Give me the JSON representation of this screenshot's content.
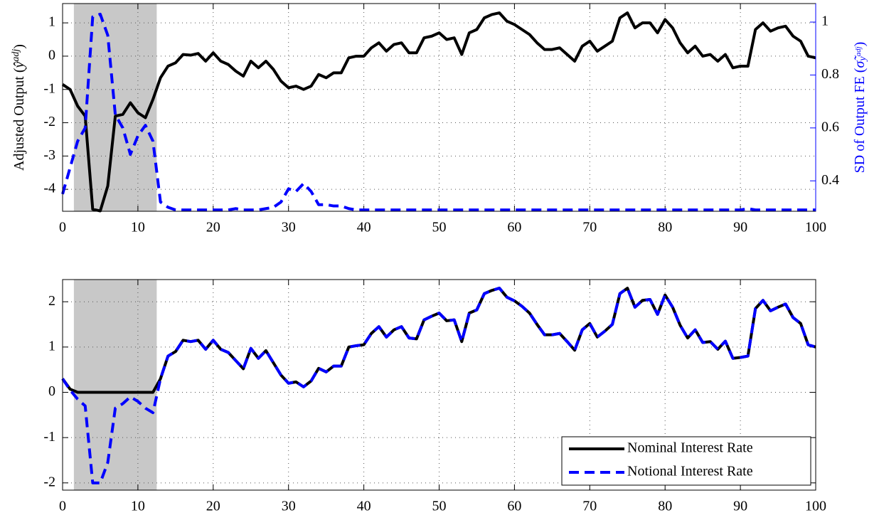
{
  "chart_data": [
    {
      "type": "line",
      "ylabel": [
        "Adjusted Output (",
        "ŷ",
        "adj",
        ")"
      ],
      "y2label": [
        "SD of Output FE (",
        "σ̃",
        "y",
        "adj",
        ")"
      ],
      "y2color": "#0000ff",
      "shaded_xrange": [
        1.5,
        12.5
      ],
      "shade_color": "#c8c8c8",
      "grid": true,
      "xlim": [
        0,
        100
      ],
      "xticks": [
        0,
        10,
        20,
        30,
        40,
        50,
        60,
        70,
        80,
        90,
        100
      ],
      "ylim": [
        -4.66,
        1.58
      ],
      "yticks": [
        -4,
        -3,
        -2,
        -1,
        0,
        1
      ],
      "y2lim": [
        0.285,
        1.07
      ],
      "y2ticks": [
        0.4,
        0.6,
        0.8,
        1
      ],
      "x": [
        0,
        1,
        2,
        3,
        4,
        5,
        6,
        7,
        8,
        9,
        10,
        11,
        12,
        13,
        14,
        15,
        16,
        17,
        18,
        19,
        20,
        21,
        22,
        23,
        24,
        25,
        26,
        27,
        28,
        29,
        30,
        31,
        32,
        33,
        34,
        35,
        36,
        37,
        38,
        39,
        40,
        41,
        42,
        43,
        44,
        45,
        46,
        47,
        48,
        49,
        50,
        51,
        52,
        53,
        54,
        55,
        56,
        57,
        58,
        59,
        60,
        61,
        62,
        63,
        64,
        65,
        66,
        67,
        68,
        69,
        70,
        71,
        72,
        73,
        74,
        75,
        76,
        77,
        78,
        79,
        80,
        81,
        82,
        83,
        84,
        85,
        86,
        87,
        88,
        89,
        90,
        91,
        92,
        93,
        94,
        95,
        96,
        97,
        98,
        99,
        100
      ],
      "series": [
        {
          "color": "#000000",
          "linestyle": "solid",
          "values": [
            -0.85,
            -1.0,
            -1.5,
            -1.8,
            -4.6,
            -4.65,
            -3.9,
            -1.8,
            -1.75,
            -1.4,
            -1.7,
            -1.85,
            -1.3,
            -0.65,
            -0.3,
            -0.2,
            0.05,
            0.03,
            0.08,
            -0.15,
            0.1,
            -0.15,
            -0.25,
            -0.45,
            -0.6,
            -0.15,
            -0.35,
            -0.15,
            -0.4,
            -0.75,
            -0.95,
            -0.9,
            -1.0,
            -0.9,
            -0.55,
            -0.65,
            -0.5,
            -0.5,
            -0.05,
            0,
            0,
            0.25,
            0.4,
            0.15,
            0.35,
            0.4,
            0.1,
            0.1,
            0.55,
            0.6,
            0.7,
            0.5,
            0.55,
            0.05,
            0.7,
            0.8,
            1.15,
            1.25,
            1.3,
            1.05,
            0.95,
            0.8,
            0.65,
            0.4,
            0.2,
            0.2,
            0.25,
            0.05,
            -0.15,
            0.3,
            0.45,
            0.15,
            0.3,
            0.45,
            1.15,
            1.3,
            0.85,
            1.0,
            1.0,
            0.7,
            1.1,
            0.85,
            0.4,
            0.1,
            0.3,
            0.0,
            0.05,
            -0.15,
            0.05,
            -0.35,
            -0.3,
            -0.3,
            0.8,
            1.0,
            0.75,
            0.85,
            0.9,
            0.6,
            0.45,
            0.0,
            -0.05
          ]
        },
        {
          "color": "#0000ff",
          "linestyle": "dashed",
          "axis": "y2",
          "values": [
            0.35,
            0.45,
            0.55,
            0.6,
            1.02,
            1.03,
            0.95,
            0.65,
            0.6,
            0.5,
            0.57,
            0.61,
            0.55,
            0.32,
            0.3,
            0.29,
            0.29,
            0.29,
            0.29,
            0.29,
            0.29,
            0.29,
            0.29,
            0.295,
            0.29,
            0.29,
            0.29,
            0.295,
            0.3,
            0.32,
            0.37,
            0.36,
            0.39,
            0.36,
            0.31,
            0.31,
            0.305,
            0.305,
            0.295,
            0.29,
            0.29,
            0.29,
            0.29,
            0.29,
            0.29,
            0.29,
            0.29,
            0.29,
            0.29,
            0.29,
            0.29,
            0.29,
            0.29,
            0.29,
            0.29,
            0.29,
            0.29,
            0.29,
            0.29,
            0.29,
            0.29,
            0.29,
            0.29,
            0.29,
            0.29,
            0.29,
            0.29,
            0.29,
            0.29,
            0.29,
            0.29,
            0.29,
            0.29,
            0.29,
            0.29,
            0.29,
            0.29,
            0.29,
            0.29,
            0.29,
            0.29,
            0.29,
            0.29,
            0.29,
            0.29,
            0.29,
            0.29,
            0.29,
            0.29,
            0.29,
            0.29,
            0.295,
            0.29,
            0.29,
            0.29,
            0.29,
            0.29,
            0.29,
            0.29,
            0.29,
            0.29
          ]
        }
      ]
    },
    {
      "type": "line",
      "shaded_xrange": [
        1.5,
        12.5
      ],
      "shade_color": "#c8c8c8",
      "grid": true,
      "legend": "lower right",
      "xlim": [
        0,
        100
      ],
      "xticks": [
        0,
        10,
        20,
        30,
        40,
        50,
        60,
        70,
        80,
        90,
        100
      ],
      "ylim": [
        -2.16,
        2.49
      ],
      "yticks": [
        -2,
        -1,
        0,
        1,
        2
      ],
      "x": [
        0,
        1,
        2,
        3,
        4,
        5,
        6,
        7,
        8,
        9,
        10,
        11,
        12,
        13,
        14,
        15,
        16,
        17,
        18,
        19,
        20,
        21,
        22,
        23,
        24,
        25,
        26,
        27,
        28,
        29,
        30,
        31,
        32,
        33,
        34,
        35,
        36,
        37,
        38,
        39,
        40,
        41,
        42,
        43,
        44,
        45,
        46,
        47,
        48,
        49,
        50,
        51,
        52,
        53,
        54,
        55,
        56,
        57,
        58,
        59,
        60,
        61,
        62,
        63,
        64,
        65,
        66,
        67,
        68,
        69,
        70,
        71,
        72,
        73,
        74,
        75,
        76,
        77,
        78,
        79,
        80,
        81,
        82,
        83,
        84,
        85,
        86,
        87,
        88,
        89,
        90,
        91,
        92,
        93,
        94,
        95,
        96,
        97,
        98,
        99,
        100
      ],
      "series": [
        {
          "name": "Nominal Interest Rate",
          "color": "#000000",
          "linestyle": "solid",
          "values": [
            0.3,
            0.07,
            0,
            0,
            0,
            0,
            0,
            0,
            0,
            0,
            0,
            0,
            0,
            0.3,
            0.8,
            0.9,
            1.15,
            1.12,
            1.15,
            0.95,
            1.15,
            0.95,
            0.88,
            0.7,
            0.52,
            0.97,
            0.75,
            0.92,
            0.65,
            0.38,
            0.2,
            0.23,
            0.12,
            0.25,
            0.53,
            0.45,
            0.58,
            0.58,
            1.0,
            1.03,
            1.05,
            1.3,
            1.45,
            1.22,
            1.38,
            1.45,
            1.2,
            1.18,
            1.6,
            1.68,
            1.75,
            1.58,
            1.6,
            1.12,
            1.75,
            1.82,
            2.18,
            2.25,
            2.3,
            2.1,
            2.02,
            1.9,
            1.75,
            1.5,
            1.27,
            1.27,
            1.3,
            1.12,
            0.93,
            1.38,
            1.52,
            1.22,
            1.35,
            1.5,
            2.18,
            2.3,
            1.88,
            2.03,
            2.05,
            1.72,
            2.15,
            1.88,
            1.48,
            1.2,
            1.38,
            1.1,
            1.12,
            0.95,
            1.13,
            0.75,
            0.77,
            0.8,
            1.85,
            2.03,
            1.8,
            1.88,
            1.95,
            1.65,
            1.52,
            1.05,
            1.0
          ]
        },
        {
          "name": "Notional Interest Rate",
          "color": "#0000ff",
          "linestyle": "dashed",
          "values": [
            0.3,
            0.05,
            -0.15,
            -0.3,
            -2.0,
            -2.0,
            -1.55,
            -0.35,
            -0.25,
            -0.1,
            -0.2,
            -0.35,
            -0.45,
            0.3,
            0.8,
            0.9,
            1.15,
            1.12,
            1.15,
            0.95,
            1.15,
            0.95,
            0.88,
            0.7,
            0.52,
            0.97,
            0.75,
            0.92,
            0.65,
            0.38,
            0.2,
            0.23,
            0.12,
            0.25,
            0.53,
            0.45,
            0.58,
            0.58,
            1.0,
            1.03,
            1.05,
            1.3,
            1.45,
            1.22,
            1.38,
            1.45,
            1.2,
            1.18,
            1.6,
            1.68,
            1.75,
            1.58,
            1.6,
            1.12,
            1.75,
            1.82,
            2.18,
            2.25,
            2.3,
            2.1,
            2.02,
            1.9,
            1.75,
            1.5,
            1.27,
            1.27,
            1.3,
            1.12,
            0.93,
            1.38,
            1.52,
            1.22,
            1.35,
            1.5,
            2.18,
            2.3,
            1.88,
            2.03,
            2.05,
            1.72,
            2.15,
            1.88,
            1.48,
            1.2,
            1.38,
            1.1,
            1.12,
            0.95,
            1.13,
            0.75,
            0.77,
            0.8,
            1.85,
            2.03,
            1.8,
            1.88,
            1.95,
            1.65,
            1.52,
            1.05,
            1.0
          ]
        }
      ]
    }
  ]
}
